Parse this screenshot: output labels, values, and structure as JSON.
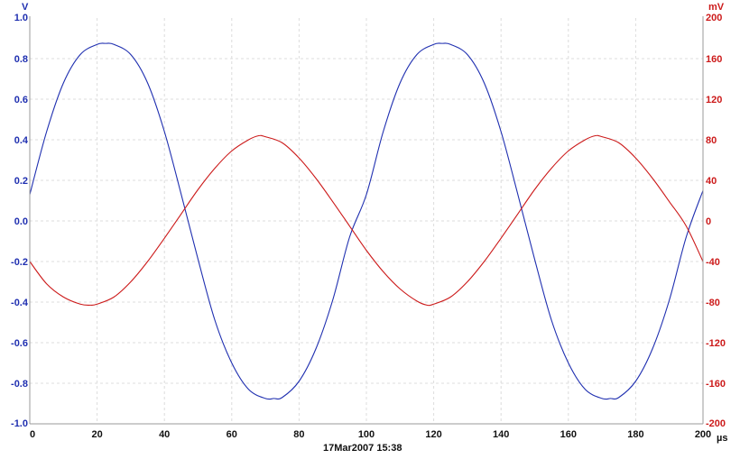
{
  "chart_data": {
    "type": "line",
    "grid": true,
    "x_unit": "µs",
    "x_ticks": [
      "0",
      "20",
      "40",
      "60",
      "80",
      "100",
      "120",
      "140",
      "160",
      "180",
      "200"
    ],
    "xlim": [
      0,
      200
    ],
    "left_axis": {
      "unit": "V",
      "ylim": [
        -1.0,
        1.0
      ],
      "tick_labels": [
        "1.0",
        "0.8",
        "0.6",
        "0.4",
        "0.2",
        "0.0",
        "-0.2",
        "-0.4",
        "-0.6",
        "-0.8",
        "-1.0"
      ],
      "color": "#1f2fb0"
    },
    "right_axis": {
      "unit": "mV",
      "ylim": [
        -200,
        200
      ],
      "tick_labels": [
        "200",
        "160",
        "120",
        "80",
        "40",
        "0",
        "-40",
        "-80",
        "-120",
        "-160",
        "-200"
      ],
      "color": "#cc1a1a"
    },
    "series": [
      {
        "axis": "left",
        "color": "#1f2fb0",
        "x": [
          0,
          5,
          10,
          15,
          20,
          22.5,
          25,
          30,
          35,
          40,
          45,
          50,
          55,
          60,
          65,
          70,
          72.5,
          75,
          80,
          85,
          90,
          95,
          100,
          105,
          110,
          115,
          120,
          122.5,
          125,
          130,
          135,
          140,
          145,
          150,
          155,
          160,
          165,
          170,
          172.5,
          175,
          180,
          185,
          190,
          195,
          200
        ],
        "y": [
          0.13,
          0.44,
          0.68,
          0.82,
          0.87,
          0.875,
          0.87,
          0.82,
          0.68,
          0.44,
          0.13,
          -0.19,
          -0.49,
          -0.7,
          -0.83,
          -0.875,
          -0.875,
          -0.87,
          -0.79,
          -0.63,
          -0.39,
          -0.08,
          0.13,
          0.44,
          0.68,
          0.82,
          0.87,
          0.875,
          0.87,
          0.82,
          0.68,
          0.44,
          0.13,
          -0.19,
          -0.49,
          -0.7,
          -0.83,
          -0.875,
          -0.875,
          -0.87,
          -0.79,
          -0.63,
          -0.39,
          -0.08,
          0.15
        ]
      },
      {
        "axis": "right",
        "color": "#cc1a1a",
        "x": [
          0,
          5,
          10,
          15,
          18,
          20,
          25,
          30,
          35,
          40,
          45,
          50,
          55,
          60,
          65,
          68,
          70,
          75,
          80,
          85,
          90,
          95,
          100,
          105,
          110,
          115,
          118,
          120,
          125,
          130,
          135,
          140,
          145,
          150,
          155,
          160,
          165,
          168,
          170,
          175,
          180,
          185,
          190,
          195,
          200
        ],
        "y": [
          -40,
          -62,
          -75,
          -82,
          -83,
          -82,
          -75,
          -60,
          -40,
          -17,
          7,
          31,
          52,
          69,
          80,
          84,
          83,
          77,
          62,
          42,
          19,
          -5,
          -29,
          -50,
          -67,
          -79,
          -83,
          -82,
          -75,
          -60,
          -40,
          -17,
          7,
          31,
          52,
          69,
          80,
          84,
          83,
          77,
          62,
          42,
          19,
          -5,
          -40
        ]
      }
    ],
    "timestamp": "17Mar2007  15:38"
  }
}
